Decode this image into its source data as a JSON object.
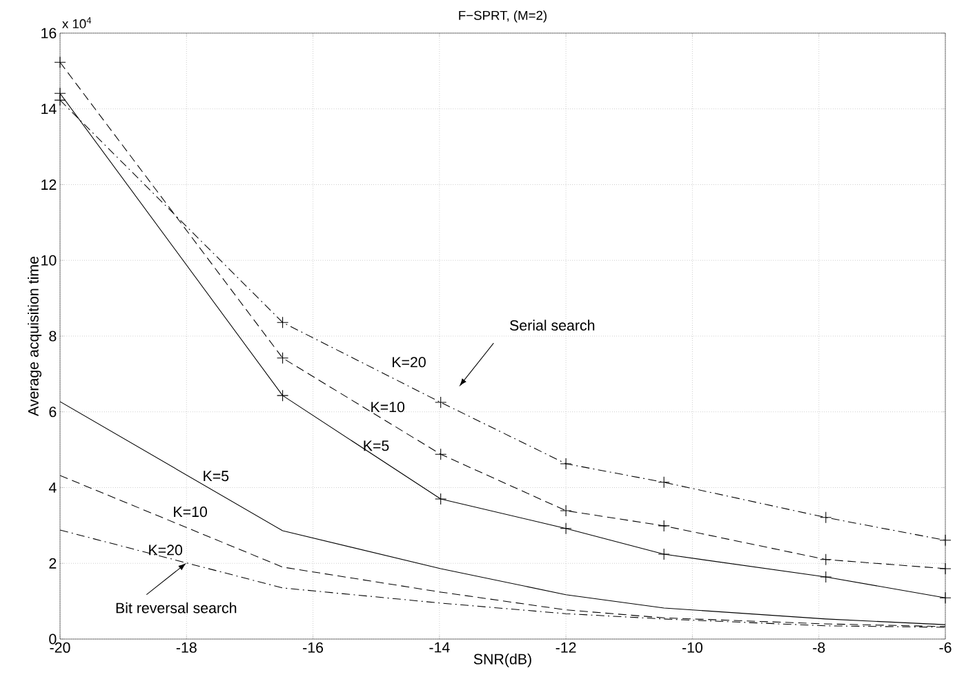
{
  "chart_data": {
    "type": "line",
    "title": "F−SPRT, (M=2)",
    "xlabel": "SNR(dB)",
    "ylabel": "Average acquisition time",
    "x": [
      -20,
      -16.48,
      -13.98,
      -12,
      -10.45,
      -7.89,
      -6
    ],
    "series": [
      {
        "name": "K=5",
        "color": "#000000",
        "line_style": "solid",
        "marker": "cross",
        "values": [
          14.41,
          6.43,
          3.7,
          2.92,
          2.24,
          1.64,
          1.09
        ]
      },
      {
        "name": "K=10",
        "color": "#000000",
        "line_style": "dashed",
        "marker": "cross",
        "values": [
          15.23,
          7.42,
          4.88,
          3.39,
          2.99,
          2.1,
          1.86
        ]
      },
      {
        "name": "K=20",
        "color": "#000000",
        "line_style": "dashdot",
        "marker": "cross",
        "values": [
          14.23,
          8.36,
          6.25,
          4.63,
          4.14,
          3.21,
          2.61
        ]
      },
      {
        "name": "K=5",
        "color": "#000000",
        "line_style": "solid",
        "marker": "none",
        "values": [
          6.27,
          2.86,
          1.86,
          1.17,
          0.82,
          0.53,
          0.38
        ]
      },
      {
        "name": "K=10",
        "color": "#000000",
        "line_style": "dashed",
        "marker": "none",
        "values": [
          4.32,
          1.9,
          1.24,
          0.77,
          0.56,
          0.4,
          0.33
        ]
      },
      {
        "name": "K=20",
        "color": "#000000",
        "line_style": "dashdot",
        "marker": "none",
        "values": [
          2.88,
          1.35,
          0.95,
          0.67,
          0.53,
          0.35,
          0.31
        ]
      }
    ],
    "xlim": [
      -20,
      -6
    ],
    "xticks": [
      -20,
      -18,
      -16,
      -14,
      -12,
      -10,
      -8,
      -6
    ],
    "ylim": [
      0,
      16
    ],
    "yticks": [
      0,
      2,
      4,
      6,
      8,
      10,
      12,
      14,
      16
    ],
    "grid": true,
    "annotations": [
      "x 10$^{4}$",
      "Serial search",
      {
        "text": "Bit reversal search",
        "x": -18.0,
        "y": 2.01
      }
    ]
  }
}
